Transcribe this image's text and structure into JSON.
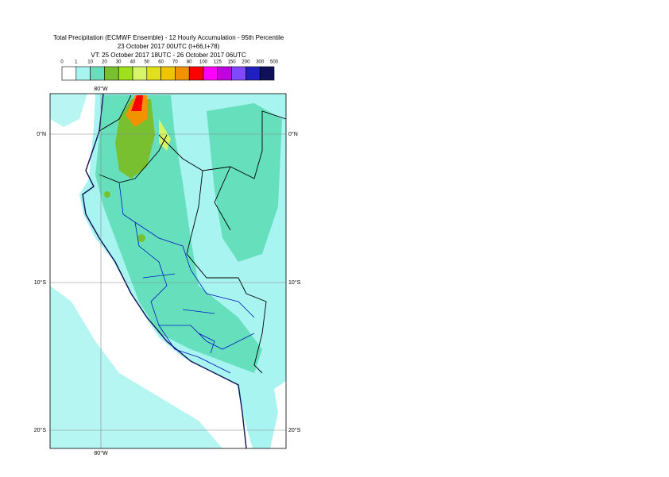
{
  "header": {
    "title": "Total Precipitation (ECMWF Ensemble) - 12 Hourly Accumulation - 95th Percentile",
    "base_time": "23 October 2017 00UTC (t+66,t+78)",
    "valid_time": "VT: 25 October 2017 18UTC - 26 October 2017 06UTC"
  },
  "legend": {
    "labels": [
      "0",
      "1",
      "10",
      "20",
      "30",
      "40",
      "50",
      "60",
      "70",
      "80",
      "100",
      "125",
      "150",
      "200",
      "300",
      "500"
    ],
    "colors": [
      "#ffffff",
      "#a8f4f0",
      "#66e0bc",
      "#78c030",
      "#9ee01c",
      "#d8f468",
      "#e0e020",
      "#f0c400",
      "#f39200",
      "#ff0000",
      "#ff00ff",
      "#c000e0",
      "#8048ff",
      "#2020c0",
      "#101058"
    ]
  },
  "map": {
    "lon_labels": [
      "80°W",
      "80°W"
    ],
    "lat_labels": [
      "0°N",
      "10°S",
      "20°S",
      "0°N",
      "10°S",
      "20°S"
    ]
  }
}
